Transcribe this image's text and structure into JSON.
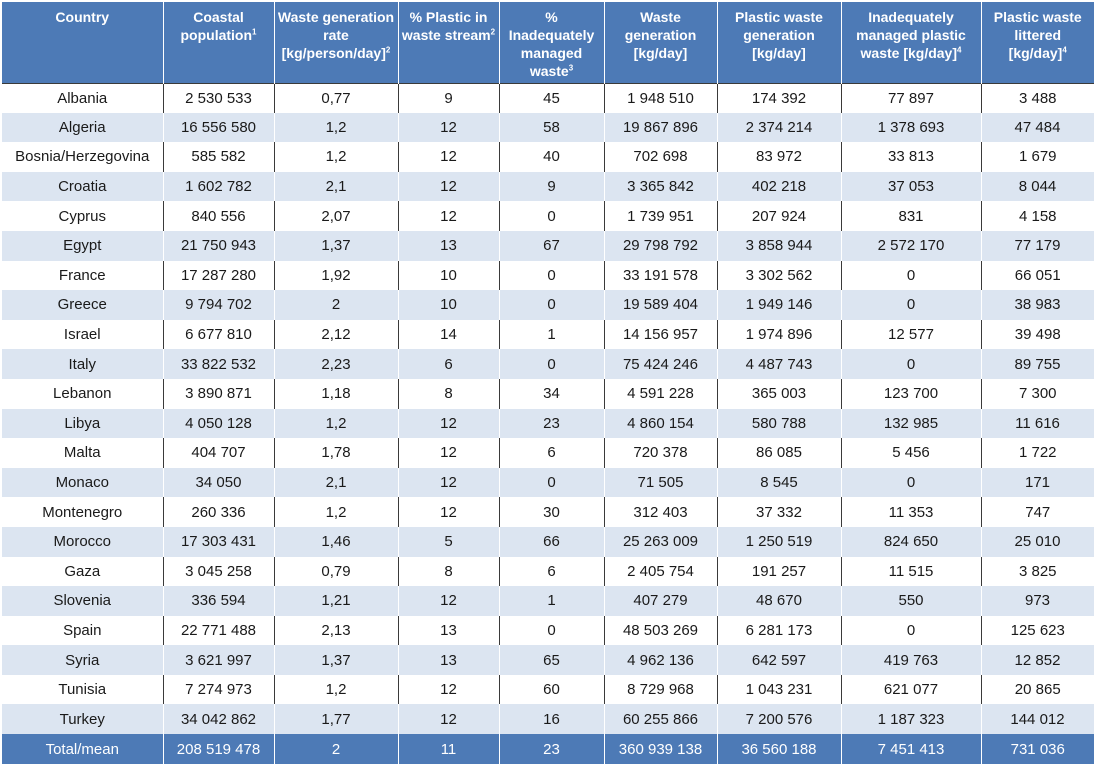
{
  "columns": [
    {
      "text": "Country",
      "sup": ""
    },
    {
      "text": "Coastal population",
      "sup": "1"
    },
    {
      "text": "Waste generation rate [kg/person/day]",
      "sup": "2"
    },
    {
      "text": "% Plastic in waste stream",
      "sup": "2"
    },
    {
      "text": "% Inadequately managed waste",
      "sup": "3"
    },
    {
      "text": "Waste generation [kg/day]",
      "sup": ""
    },
    {
      "text": "Plastic waste generation [kg/day]",
      "sup": ""
    },
    {
      "text": "Inadequately managed plastic waste [kg/day]",
      "sup": "4"
    },
    {
      "text": "Plastic waste littered [kg/day]",
      "sup": "4"
    }
  ],
  "rows": [
    [
      "Albania",
      "2 530 533",
      "0,77",
      "9",
      "45",
      "1 948 510",
      "174 392",
      "77 897",
      "3 488"
    ],
    [
      "Algeria",
      "16 556 580",
      "1,2",
      "12",
      "58",
      "19 867 896",
      "2 374 214",
      "1 378 693",
      "47 484"
    ],
    [
      "Bosnia/Herzegovina",
      "585 582",
      "1,2",
      "12",
      "40",
      "702 698",
      "83 972",
      "33 813",
      "1 679"
    ],
    [
      "Croatia",
      "1 602 782",
      "2,1",
      "12",
      "9",
      "3 365 842",
      "402 218",
      "37 053",
      "8 044"
    ],
    [
      "Cyprus",
      "840 556",
      "2,07",
      "12",
      "0",
      "1 739 951",
      "207 924",
      "831",
      "4 158"
    ],
    [
      "Egypt",
      "21 750 943",
      "1,37",
      "13",
      "67",
      "29 798 792",
      "3 858 944",
      "2 572 170",
      "77 179"
    ],
    [
      "France",
      "17 287 280",
      "1,92",
      "10",
      "0",
      "33 191 578",
      "3 302 562",
      "0",
      "66 051"
    ],
    [
      "Greece",
      "9 794 702",
      "2",
      "10",
      "0",
      "19 589 404",
      "1 949 146",
      "0",
      "38 983"
    ],
    [
      "Israel",
      "6 677 810",
      "2,12",
      "14",
      "1",
      "14 156 957",
      "1 974 896",
      "12 577",
      "39 498"
    ],
    [
      "Italy",
      "33 822 532",
      "2,23",
      "6",
      "0",
      "75 424 246",
      "4 487 743",
      "0",
      "89 755"
    ],
    [
      "Lebanon",
      "3 890 871",
      "1,18",
      "8",
      "34",
      "4 591 228",
      "365 003",
      "123 700",
      "7 300"
    ],
    [
      "Libya",
      "4 050 128",
      "1,2",
      "12",
      "23",
      "4 860 154",
      "580 788",
      "132 985",
      "11 616"
    ],
    [
      "Malta",
      "404 707",
      "1,78",
      "12",
      "6",
      "720 378",
      "86 085",
      "5 456",
      "1 722"
    ],
    [
      "Monaco",
      "34 050",
      "2,1",
      "12",
      "0",
      "71 505",
      "8 545",
      "0",
      "171"
    ],
    [
      "Montenegro",
      "260 336",
      "1,2",
      "12",
      "30",
      "312 403",
      "37 332",
      "11 353",
      "747"
    ],
    [
      "Morocco",
      "17 303 431",
      "1,46",
      "5",
      "66",
      "25 263 009",
      "1 250 519",
      "824 650",
      "25 010"
    ],
    [
      "Gaza",
      "3 045 258",
      "0,79",
      "8",
      "6",
      "2 405 754",
      "191 257",
      "11 515",
      "3 825"
    ],
    [
      "Slovenia",
      "336 594",
      "1,21",
      "12",
      "1",
      "407 279",
      "48 670",
      "550",
      "973"
    ],
    [
      "Spain",
      "22 771 488",
      "2,13",
      "13",
      "0",
      "48 503 269",
      "6 281 173",
      "0",
      "125 623"
    ],
    [
      "Syria",
      "3 621 997",
      "1,37",
      "13",
      "65",
      "4 962 136",
      "642 597",
      "419 763",
      "12 852"
    ],
    [
      "Tunisia",
      "7 274 973",
      "1,2",
      "12",
      "60",
      "8 729 968",
      "1 043 231",
      "621 077",
      "20 865"
    ],
    [
      "Turkey",
      "34 042 862",
      "1,77",
      "12",
      "16",
      "60 255 866",
      "7 200 576",
      "1 187 323",
      "144 012"
    ]
  ],
  "total": [
    "Total/mean",
    "208 519 478",
    "2",
    "11",
    "23",
    "360 939 138",
    "36 560 188",
    "7 451 413",
    "731 036"
  ],
  "colors": {
    "header_bg": "#4d7ab6",
    "stripe_bg": "#dce5f1",
    "text": "#1a1a1a"
  }
}
